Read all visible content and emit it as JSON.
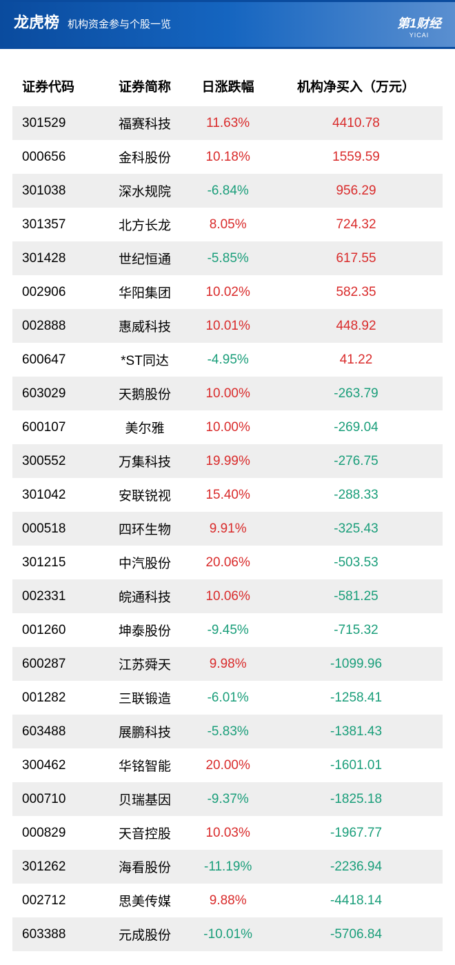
{
  "header": {
    "title": "龙虎榜",
    "subtitle": "机构资金参与个股一览",
    "logo_text": "第1财经",
    "logo_sub": "YICAI"
  },
  "table": {
    "columns": [
      "证券代码",
      "证券简称",
      "日涨跌幅",
      "机构净买入（万元）"
    ],
    "colors": {
      "up": "#d92b2b",
      "down": "#1a9e7a",
      "text": "#000000",
      "row_odd": "#eeeeee",
      "row_even": "#ffffff"
    },
    "fontsize": 19,
    "rows": [
      {
        "code": "301529",
        "name": "福赛科技",
        "change": "11.63%",
        "change_dir": "up",
        "net": "4410.78",
        "net_dir": "up"
      },
      {
        "code": "000656",
        "name": "金科股份",
        "change": "10.18%",
        "change_dir": "up",
        "net": "1559.59",
        "net_dir": "up"
      },
      {
        "code": "301038",
        "name": "深水规院",
        "change": "-6.84%",
        "change_dir": "down",
        "net": "956.29",
        "net_dir": "up"
      },
      {
        "code": "301357",
        "name": "北方长龙",
        "change": "8.05%",
        "change_dir": "up",
        "net": "724.32",
        "net_dir": "up"
      },
      {
        "code": "301428",
        "name": "世纪恒通",
        "change": "-5.85%",
        "change_dir": "down",
        "net": "617.55",
        "net_dir": "up"
      },
      {
        "code": "002906",
        "name": "华阳集团",
        "change": "10.02%",
        "change_dir": "up",
        "net": "582.35",
        "net_dir": "up"
      },
      {
        "code": "002888",
        "name": "惠威科技",
        "change": "10.01%",
        "change_dir": "up",
        "net": "448.92",
        "net_dir": "up"
      },
      {
        "code": "600647",
        "name": "*ST同达",
        "change": "-4.95%",
        "change_dir": "down",
        "net": "41.22",
        "net_dir": "up"
      },
      {
        "code": "603029",
        "name": "天鹅股份",
        "change": "10.00%",
        "change_dir": "up",
        "net": "-263.79",
        "net_dir": "down"
      },
      {
        "code": "600107",
        "name": "美尔雅",
        "change": "10.00%",
        "change_dir": "up",
        "net": "-269.04",
        "net_dir": "down"
      },
      {
        "code": "300552",
        "name": "万集科技",
        "change": "19.99%",
        "change_dir": "up",
        "net": "-276.75",
        "net_dir": "down"
      },
      {
        "code": "301042",
        "name": "安联锐视",
        "change": "15.40%",
        "change_dir": "up",
        "net": "-288.33",
        "net_dir": "down"
      },
      {
        "code": "000518",
        "name": "四环生物",
        "change": "9.91%",
        "change_dir": "up",
        "net": "-325.43",
        "net_dir": "down"
      },
      {
        "code": "301215",
        "name": "中汽股份",
        "change": "20.06%",
        "change_dir": "up",
        "net": "-503.53",
        "net_dir": "down"
      },
      {
        "code": "002331",
        "name": "皖通科技",
        "change": "10.06%",
        "change_dir": "up",
        "net": "-581.25",
        "net_dir": "down"
      },
      {
        "code": "001260",
        "name": "坤泰股份",
        "change": "-9.45%",
        "change_dir": "down",
        "net": "-715.32",
        "net_dir": "down"
      },
      {
        "code": "600287",
        "name": "江苏舜天",
        "change": "9.98%",
        "change_dir": "up",
        "net": "-1099.96",
        "net_dir": "down"
      },
      {
        "code": "001282",
        "name": "三联锻造",
        "change": "-6.01%",
        "change_dir": "down",
        "net": "-1258.41",
        "net_dir": "down"
      },
      {
        "code": "603488",
        "name": "展鹏科技",
        "change": "-5.83%",
        "change_dir": "down",
        "net": "-1381.43",
        "net_dir": "down"
      },
      {
        "code": "300462",
        "name": "华铭智能",
        "change": "20.00%",
        "change_dir": "up",
        "net": "-1601.01",
        "net_dir": "down"
      },
      {
        "code": "000710",
        "name": "贝瑞基因",
        "change": "-9.37%",
        "change_dir": "down",
        "net": "-1825.18",
        "net_dir": "down"
      },
      {
        "code": "000829",
        "name": "天音控股",
        "change": "10.03%",
        "change_dir": "up",
        "net": "-1967.77",
        "net_dir": "down"
      },
      {
        "code": "301262",
        "name": "海看股份",
        "change": "-11.19%",
        "change_dir": "down",
        "net": "-2236.94",
        "net_dir": "down"
      },
      {
        "code": "002712",
        "name": "思美传媒",
        "change": "9.88%",
        "change_dir": "up",
        "net": "-4418.14",
        "net_dir": "down"
      },
      {
        "code": "603388",
        "name": "元成股份",
        "change": "-10.01%",
        "change_dir": "down",
        "net": "-5706.84",
        "net_dir": "down"
      }
    ]
  }
}
